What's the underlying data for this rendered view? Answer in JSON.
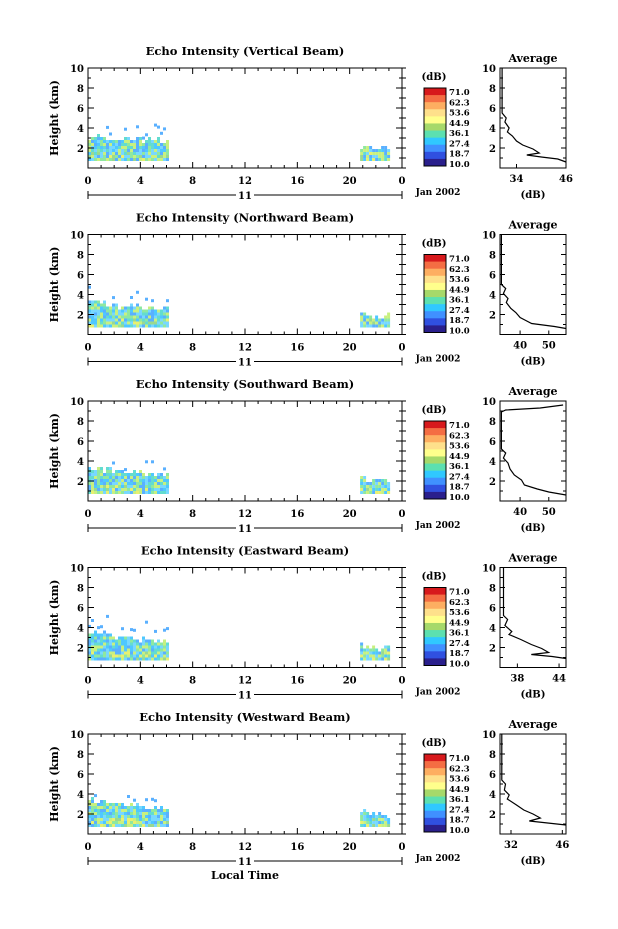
{
  "figure": {
    "date_label": "Jan 2002",
    "day_label": "11",
    "xlabel_bottom": "Local Time",
    "colorbar_unit": "(dB)",
    "colorbar_ticks": [
      "71.0",
      "62.3",
      "53.6",
      "44.9",
      "36.1",
      "27.4",
      "18.7",
      "10.0"
    ],
    "colorbar_colors": [
      "#d7191c",
      "#f46d43",
      "#fdae61",
      "#fee08b",
      "#ffff8c",
      "#a6d96a",
      "#5ce0b0",
      "#30c8ff",
      "#4090ff",
      "#3050e0",
      "#2a1f8c"
    ],
    "echo_palette": [
      "#5ab0ff",
      "#4fc8ff",
      "#63dcd0",
      "#8fe8a0",
      "#c8f080",
      "#78d8ff",
      "#9ad890",
      "#e8f070"
    ]
  },
  "chart_data": [
    {
      "type": "heatmap",
      "title": "Echo Intensity (Vertical Beam)",
      "ylabel": "Height (km)",
      "x_ticks": [
        "0",
        "4",
        "8",
        "12",
        "16",
        "20",
        "0"
      ],
      "y_ticks": [
        "2",
        "4",
        "6",
        "8",
        "10"
      ],
      "xlim": [
        0,
        24
      ],
      "ylim": [
        0,
        10
      ],
      "echo_regions": [
        {
          "x_start": 0.0,
          "x_end": 6.0,
          "y_top_start": 3.2,
          "y_top_end": 2.9
        },
        {
          "x_start": 20.8,
          "x_end": 23.0,
          "y_top_start": 2.3,
          "y_top_end": 2.1
        }
      ],
      "average_profile": {
        "title": "Average",
        "xlabel": "(dB)",
        "x_ticks": [
          "34",
          "46"
        ],
        "xlim": [
          30,
          46
        ],
        "points": [
          [
            30.5,
            10
          ],
          [
            30.5,
            5.5
          ],
          [
            31.5,
            5.0
          ],
          [
            31.2,
            4.6
          ],
          [
            32.2,
            4.0
          ],
          [
            31.8,
            3.6
          ],
          [
            33.0,
            3.2
          ],
          [
            34.0,
            2.7
          ],
          [
            35.5,
            2.3
          ],
          [
            38.0,
            1.9
          ],
          [
            39.5,
            1.5
          ],
          [
            36.5,
            1.3
          ],
          [
            40.0,
            1.1
          ],
          [
            44.0,
            0.9
          ],
          [
            46.0,
            0.6
          ]
        ]
      }
    },
    {
      "type": "heatmap",
      "title": "Echo Intensity (Northward Beam)",
      "ylabel": "Height (km)",
      "x_ticks": [
        "0",
        "4",
        "8",
        "12",
        "16",
        "20",
        "0"
      ],
      "y_ticks": [
        "2",
        "4",
        "6",
        "8",
        "10"
      ],
      "xlim": [
        0,
        24
      ],
      "ylim": [
        0,
        10
      ],
      "echo_regions": [
        {
          "x_start": 0.0,
          "x_end": 6.0,
          "y_top_start": 3.3,
          "y_top_end": 2.7
        },
        {
          "x_start": 20.8,
          "x_end": 23.0,
          "y_top_start": 2.3,
          "y_top_end": 2.0
        }
      ],
      "average_profile": {
        "title": "Average",
        "xlabel": "(dB)",
        "x_ticks": [
          "40",
          "50"
        ],
        "xlim": [
          33,
          56
        ],
        "points": [
          [
            33.5,
            10
          ],
          [
            33.5,
            5.0
          ],
          [
            35.0,
            4.6
          ],
          [
            34.2,
            4.1
          ],
          [
            35.8,
            3.6
          ],
          [
            35.2,
            3.2
          ],
          [
            36.8,
            2.6
          ],
          [
            38.5,
            2.2
          ],
          [
            40.0,
            1.7
          ],
          [
            42.0,
            1.4
          ],
          [
            44.0,
            1.1
          ],
          [
            52.0,
            0.8
          ],
          [
            56.0,
            0.6
          ]
        ]
      }
    },
    {
      "type": "heatmap",
      "title": "Echo Intensity (Southward Beam)",
      "ylabel": "Height (km)",
      "x_ticks": [
        "0",
        "4",
        "8",
        "12",
        "16",
        "20",
        "0"
      ],
      "y_ticks": [
        "2",
        "4",
        "6",
        "8",
        "10"
      ],
      "xlim": [
        0,
        24
      ],
      "ylim": [
        0,
        10
      ],
      "echo_regions": [
        {
          "x_start": 0.0,
          "x_end": 6.0,
          "y_top_start": 3.5,
          "y_top_end": 2.7
        },
        {
          "x_start": 20.8,
          "x_end": 23.0,
          "y_top_start": 2.4,
          "y_top_end": 2.0
        }
      ],
      "average_profile": {
        "title": "Average",
        "xlabel": "(dB)",
        "x_ticks": [
          "40",
          "50"
        ],
        "xlim": [
          33,
          56
        ],
        "points": [
          [
            55.0,
            9.6
          ],
          [
            47.0,
            9.3
          ],
          [
            35.0,
            9.1
          ],
          [
            33.5,
            8.9
          ],
          [
            33.5,
            5.2
          ],
          [
            35.0,
            4.8
          ],
          [
            34.2,
            4.3
          ],
          [
            35.8,
            3.8
          ],
          [
            36.5,
            3.2
          ],
          [
            38.0,
            2.6
          ],
          [
            40.5,
            2.1
          ],
          [
            41.5,
            1.6
          ],
          [
            46.0,
            1.2
          ],
          [
            50.0,
            0.9
          ],
          [
            56.0,
            0.6
          ]
        ]
      }
    },
    {
      "type": "heatmap",
      "title": "Echo Intensity (Eastward Beam)",
      "ylabel": "Height (km)",
      "x_ticks": [
        "0",
        "4",
        "8",
        "12",
        "16",
        "20",
        "0"
      ],
      "y_ticks": [
        "2",
        "4",
        "6",
        "8",
        "10"
      ],
      "xlim": [
        0,
        24
      ],
      "ylim": [
        0,
        10
      ],
      "echo_regions": [
        {
          "x_start": 0.0,
          "x_end": 6.0,
          "y_top_start": 3.6,
          "y_top_end": 2.7
        },
        {
          "x_start": 20.8,
          "x_end": 23.0,
          "y_top_start": 2.4,
          "y_top_end": 2.0
        }
      ],
      "average_profile": {
        "title": "Average",
        "xlabel": "(dB)",
        "x_ticks": [
          "38",
          "44"
        ],
        "xlim": [
          35.5,
          45
        ],
        "points": [
          [
            36.0,
            10
          ],
          [
            36.0,
            5.2
          ],
          [
            36.6,
            4.8
          ],
          [
            36.2,
            4.2
          ],
          [
            37.2,
            3.6
          ],
          [
            36.8,
            3.3
          ],
          [
            38.5,
            2.8
          ],
          [
            40.0,
            2.3
          ],
          [
            41.5,
            1.9
          ],
          [
            42.5,
            1.5
          ],
          [
            40.0,
            1.3
          ],
          [
            43.0,
            1.1
          ],
          [
            45.0,
            0.9
          ]
        ]
      }
    },
    {
      "type": "heatmap",
      "title": "Echo Intensity (Westward Beam)",
      "ylabel": "Height (km)",
      "x_ticks": [
        "0",
        "4",
        "8",
        "12",
        "16",
        "20",
        "0"
      ],
      "y_ticks": [
        "2",
        "4",
        "6",
        "8",
        "10"
      ],
      "xlim": [
        0,
        24
      ],
      "ylim": [
        0,
        10
      ],
      "echo_regions": [
        {
          "x_start": 0.0,
          "x_end": 6.0,
          "y_top_start": 3.5,
          "y_top_end": 2.7
        },
        {
          "x_start": 20.8,
          "x_end": 23.0,
          "y_top_start": 2.4,
          "y_top_end": 2.0
        }
      ],
      "average_profile": {
        "title": "Average",
        "xlabel": "(dB)",
        "x_ticks": [
          "32",
          "46"
        ],
        "xlim": [
          29,
          47
        ],
        "points": [
          [
            29.5,
            10
          ],
          [
            29.5,
            5.4
          ],
          [
            30.5,
            5.0
          ],
          [
            30.2,
            4.4
          ],
          [
            31.5,
            3.9
          ],
          [
            31.0,
            3.5
          ],
          [
            33.5,
            2.9
          ],
          [
            35.5,
            2.4
          ],
          [
            38.0,
            2.0
          ],
          [
            40.0,
            1.6
          ],
          [
            37.0,
            1.3
          ],
          [
            42.0,
            1.1
          ],
          [
            47.0,
            0.9
          ]
        ]
      }
    }
  ]
}
